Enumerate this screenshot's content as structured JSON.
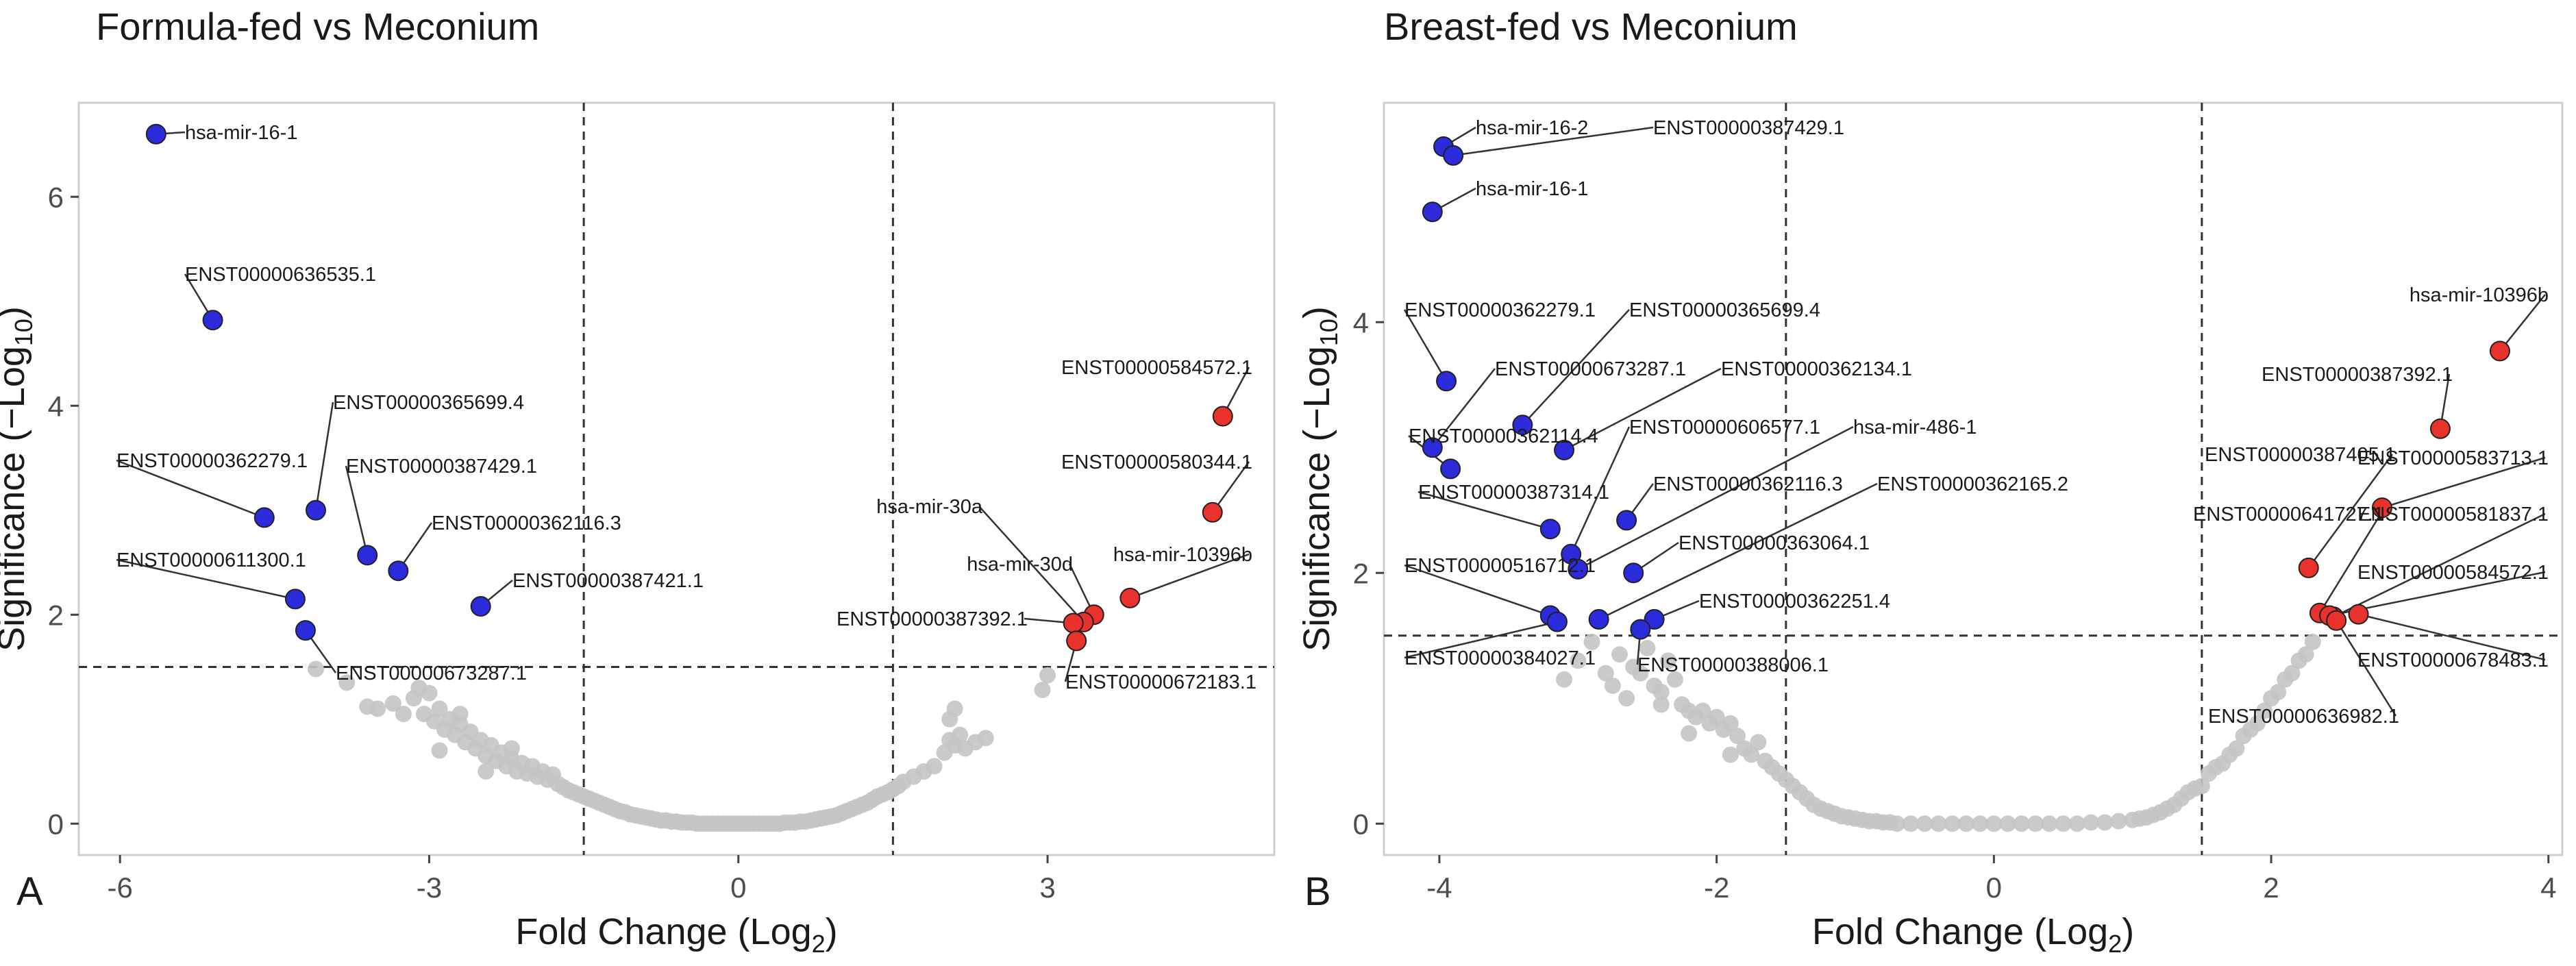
{
  "chart_data": [
    {
      "panel_letter": "A",
      "type": "scatter",
      "title": "Formula-fed vs Meconium",
      "xlabel": "Fold Change (Log",
      "xlabel_sub": "2",
      "xlabel_end": ")",
      "ylabel": "Significance (−Log",
      "ylabel_sub": "10",
      "ylabel_end": ")",
      "xlim": [
        -6.4,
        5.2
      ],
      "ylim": [
        -0.3,
        6.9
      ],
      "xticks": [
        -6,
        -3,
        0,
        3
      ],
      "xtick_labels": [
        "-6",
        "-3",
        "0",
        "3"
      ],
      "yticks": [
        0,
        2,
        4,
        6
      ],
      "ytick_labels": [
        "0",
        "2",
        "4",
        "6"
      ],
      "fc_thresholds": [
        -1.5,
        1.5
      ],
      "sig_threshold": 1.5,
      "colors": {
        "down": "#2b2bdc",
        "up": "#e8322b",
        "ns": "#c4c4c4",
        "grid": "#000000"
      },
      "down_points": [
        {
          "label": "hsa-mir-16-1",
          "x": -5.65,
          "y": 6.6
        },
        {
          "label": "ENST00000636535.1",
          "x": -5.1,
          "y": 4.82
        },
        {
          "label": "ENST00000365699.4",
          "x": -4.1,
          "y": 3.0
        },
        {
          "label": "ENST00000362279.1",
          "x": -4.6,
          "y": 2.93
        },
        {
          "label": "ENST00000387429.1",
          "x": -3.6,
          "y": 2.57
        },
        {
          "label": "ENST00000362116.3",
          "x": -3.3,
          "y": 2.42
        },
        {
          "label": "ENST00000387421.1",
          "x": -2.5,
          "y": 2.08
        },
        {
          "label": "ENST00000611300.1",
          "x": -4.3,
          "y": 2.15
        },
        {
          "label": "ENST00000673287.1",
          "x": -4.2,
          "y": 1.85
        }
      ],
      "up_points": [
        {
          "label": "ENST00000584572.1",
          "x": 4.7,
          "y": 3.9
        },
        {
          "label": "ENST00000580344.1",
          "x": 4.6,
          "y": 2.98
        },
        {
          "label": "hsa-mir-10396b",
          "x": 3.8,
          "y": 2.16
        },
        {
          "label": "hsa-mir-30d",
          "x": 3.45,
          "y": 2.0
        },
        {
          "label": "hsa-mir-30a",
          "x": 3.35,
          "y": 1.93
        },
        {
          "label": "ENST00000387392.1",
          "x": 3.25,
          "y": 1.92
        },
        {
          "label": "ENST00000672183.1",
          "x": 3.28,
          "y": 1.75
        }
      ],
      "ns_points": [
        [
          -4.1,
          1.48
        ],
        [
          -3.8,
          1.35
        ],
        [
          -3.6,
          1.12
        ],
        [
          -3.5,
          1.1
        ],
        [
          -3.35,
          1.15
        ],
        [
          -3.25,
          1.05
        ],
        [
          -3.15,
          1.2
        ],
        [
          -3.05,
          1.05
        ],
        [
          -3.0,
          1.25
        ],
        [
          -2.95,
          0.98
        ],
        [
          -2.9,
          1.1
        ],
        [
          -2.85,
          0.9
        ],
        [
          -2.8,
          1.0
        ],
        [
          -2.75,
          0.85
        ],
        [
          -2.7,
          0.95
        ],
        [
          -2.65,
          0.78
        ],
        [
          -2.6,
          0.88
        ],
        [
          -2.55,
          0.72
        ],
        [
          -2.5,
          0.8
        ],
        [
          -2.45,
          0.65
        ],
        [
          -2.4,
          0.75
        ],
        [
          -2.35,
          0.6
        ],
        [
          -2.3,
          0.68
        ],
        [
          -2.25,
          0.55
        ],
        [
          -2.2,
          0.62
        ],
        [
          -2.15,
          0.5
        ],
        [
          -2.1,
          0.58
        ],
        [
          -2.05,
          0.48
        ],
        [
          -2.0,
          0.55
        ],
        [
          -1.95,
          0.45
        ],
        [
          -1.9,
          0.5
        ],
        [
          -1.85,
          0.42
        ],
        [
          -1.8,
          0.47
        ],
        [
          -1.75,
          0.38
        ],
        [
          -1.7,
          0.35
        ],
        [
          -1.65,
          0.32
        ],
        [
          -1.6,
          0.3
        ],
        [
          -1.55,
          0.28
        ],
        [
          -1.5,
          0.26
        ],
        [
          -1.45,
          0.24
        ],
        [
          -1.4,
          0.22
        ],
        [
          -1.35,
          0.2
        ],
        [
          -1.3,
          0.18
        ],
        [
          -1.25,
          0.16
        ],
        [
          -1.2,
          0.14
        ],
        [
          -1.15,
          0.12
        ],
        [
          -1.1,
          0.11
        ],
        [
          -1.05,
          0.09
        ],
        [
          -1.0,
          0.08
        ],
        [
          -0.95,
          0.07
        ],
        [
          -0.9,
          0.06
        ],
        [
          -0.85,
          0.05
        ],
        [
          -0.8,
          0.04
        ],
        [
          -0.75,
          0.03
        ],
        [
          -0.7,
          0.03
        ],
        [
          -0.65,
          0.02
        ],
        [
          -0.6,
          0.02
        ],
        [
          -0.55,
          0.01
        ],
        [
          -0.5,
          0.01
        ],
        [
          -0.45,
          0.01
        ],
        [
          -0.4,
          0.0
        ],
        [
          -0.35,
          0.0
        ],
        [
          -0.3,
          0.0
        ],
        [
          -0.25,
          0.0
        ],
        [
          -0.2,
          0.0
        ],
        [
          -0.15,
          0.0
        ],
        [
          -0.1,
          0.0
        ],
        [
          -0.05,
          0.0
        ],
        [
          0.0,
          0.0
        ],
        [
          0.05,
          0.0
        ],
        [
          0.1,
          0.0
        ],
        [
          0.15,
          0.0
        ],
        [
          0.2,
          0.0
        ],
        [
          0.25,
          0.0
        ],
        [
          0.3,
          0.0
        ],
        [
          0.35,
          0.0
        ],
        [
          0.4,
          0.0
        ],
        [
          0.45,
          0.01
        ],
        [
          0.5,
          0.01
        ],
        [
          0.55,
          0.01
        ],
        [
          0.6,
          0.02
        ],
        [
          0.65,
          0.02
        ],
        [
          0.7,
          0.03
        ],
        [
          0.75,
          0.04
        ],
        [
          0.8,
          0.05
        ],
        [
          0.85,
          0.06
        ],
        [
          0.9,
          0.07
        ],
        [
          0.95,
          0.08
        ],
        [
          1.0,
          0.1
        ],
        [
          1.05,
          0.12
        ],
        [
          1.1,
          0.14
        ],
        [
          1.15,
          0.16
        ],
        [
          1.2,
          0.18
        ],
        [
          1.25,
          0.2
        ],
        [
          1.3,
          0.23
        ],
        [
          1.35,
          0.26
        ],
        [
          1.4,
          0.28
        ],
        [
          1.45,
          0.3
        ],
        [
          1.5,
          0.33
        ],
        [
          1.55,
          0.36
        ],
        [
          1.6,
          0.4
        ],
        [
          1.7,
          0.45
        ],
        [
          1.8,
          0.5
        ],
        [
          1.9,
          0.55
        ],
        [
          2.0,
          0.68
        ],
        [
          2.05,
          0.8
        ],
        [
          2.1,
          0.75
        ],
        [
          2.15,
          0.85
        ],
        [
          2.2,
          0.72
        ],
        [
          2.3,
          0.78
        ],
        [
          2.4,
          0.82
        ],
        [
          2.05,
          1.0
        ],
        [
          2.1,
          1.1
        ],
        [
          2.95,
          1.28
        ],
        [
          3.0,
          1.42
        ],
        [
          -3.1,
          1.3
        ],
        [
          -2.7,
          1.05
        ],
        [
          -2.2,
          0.72
        ],
        [
          -2.45,
          0.5
        ],
        [
          -2.9,
          0.7
        ]
      ]
    },
    {
      "panel_letter": "B",
      "type": "scatter",
      "title": "Breast-fed vs Meconium",
      "xlabel": "Fold Change (Log",
      "xlabel_sub": "2",
      "xlabel_end": ")",
      "ylabel": "Significance (−Log",
      "ylabel_sub": "10",
      "ylabel_end": ")",
      "xlim": [
        -4.4,
        4.1
      ],
      "ylim": [
        -0.25,
        5.75
      ],
      "xticks": [
        -4,
        -2,
        0,
        2,
        4
      ],
      "xtick_labels": [
        "-4",
        "-2",
        "0",
        "2",
        "4"
      ],
      "yticks": [
        0,
        2,
        4
      ],
      "ytick_labels": [
        "0",
        "2",
        "4"
      ],
      "fc_thresholds": [
        -1.5,
        1.5
      ],
      "sig_threshold": 1.5,
      "colors": {
        "down": "#2b2bdc",
        "up": "#e8322b",
        "ns": "#c4c4c4",
        "grid": "#000000"
      },
      "down_points": [
        {
          "label": "hsa-mir-16-2",
          "x": -3.97,
          "y": 5.4
        },
        {
          "label": "ENST00000387429.1",
          "x": -3.9,
          "y": 5.33
        },
        {
          "label": "hsa-mir-16-1",
          "x": -4.05,
          "y": 4.88
        },
        {
          "label": "ENST00000362279.1",
          "x": -3.95,
          "y": 3.53
        },
        {
          "label": "ENST00000365699.4",
          "x": -3.4,
          "y": 3.18
        },
        {
          "label": "ENST00000673287.1",
          "x": -4.05,
          "y": 3.0
        },
        {
          "label": "ENST00000362134.1",
          "x": -3.1,
          "y": 2.98
        },
        {
          "label": "ENST00000362114.4",
          "x": -3.92,
          "y": 2.83
        },
        {
          "label": "ENST00000606577.1",
          "x": -3.05,
          "y": 2.15
        },
        {
          "label": "hsa-mir-486-1",
          "x": -3.0,
          "y": 2.03
        },
        {
          "label": "ENST00000387314.1",
          "x": -3.2,
          "y": 2.35
        },
        {
          "label": "ENST00000362116.3",
          "x": -2.65,
          "y": 2.42
        },
        {
          "label": "ENST00000362165.2",
          "x": -2.85,
          "y": 1.63
        },
        {
          "label": "ENST00000363064.1",
          "x": -2.6,
          "y": 2.0
        },
        {
          "label": "ENST00000516712.1",
          "x": -3.2,
          "y": 1.66
        },
        {
          "label": "ENST00000362251.4",
          "x": -2.45,
          "y": 1.63
        },
        {
          "label": "ENST00000384027.1",
          "x": -3.15,
          "y": 1.61
        },
        {
          "label": "ENST00000388006.1",
          "x": -2.55,
          "y": 1.55
        }
      ],
      "up_points": [
        {
          "label": "hsa-mir-10396b",
          "x": 3.65,
          "y": 3.77
        },
        {
          "label": "ENST00000387392.1",
          "x": 3.22,
          "y": 3.15
        },
        {
          "label": "ENST00000583713.1",
          "x": 2.8,
          "y": 2.52
        },
        {
          "label": "ENST00000387405.1",
          "x": 2.27,
          "y": 2.04
        },
        {
          "label": "ENST00000581837.1",
          "x": 2.45,
          "y": 1.65
        },
        {
          "label": "ENST00000641727.1",
          "x": 2.35,
          "y": 1.68
        },
        {
          "label": "ENST00000584572.1",
          "x": 2.42,
          "y": 1.66
        },
        {
          "label": "ENST00000678483.1",
          "x": 2.63,
          "y": 1.67
        },
        {
          "label": "ENST00000636982.1",
          "x": 2.47,
          "y": 1.62
        }
      ],
      "ns_points": [
        [
          -3.1,
          1.15
        ],
        [
          -3.0,
          1.3
        ],
        [
          -2.9,
          1.45
        ],
        [
          -2.8,
          1.2
        ],
        [
          -2.75,
          1.1
        ],
        [
          -2.7,
          1.35
        ],
        [
          -2.6,
          1.25
        ],
        [
          -2.55,
          1.2
        ],
        [
          -2.5,
          1.4
        ],
        [
          -2.45,
          1.1
        ],
        [
          -2.4,
          1.05
        ],
        [
          -2.35,
          1.3
        ],
        [
          -2.3,
          1.15
        ],
        [
          -2.25,
          0.95
        ],
        [
          -2.2,
          0.9
        ],
        [
          -2.15,
          0.85
        ],
        [
          -2.1,
          0.9
        ],
        [
          -2.05,
          0.8
        ],
        [
          -2.0,
          0.85
        ],
        [
          -1.95,
          0.75
        ],
        [
          -1.9,
          0.8
        ],
        [
          -1.85,
          0.7
        ],
        [
          -1.8,
          0.6
        ],
        [
          -1.75,
          0.55
        ],
        [
          -1.7,
          0.65
        ],
        [
          -1.65,
          0.5
        ],
        [
          -1.6,
          0.45
        ],
        [
          -1.55,
          0.4
        ],
        [
          -1.5,
          0.35
        ],
        [
          -1.45,
          0.3
        ],
        [
          -1.4,
          0.25
        ],
        [
          -1.35,
          0.2
        ],
        [
          -1.3,
          0.15
        ],
        [
          -1.25,
          0.12
        ],
        [
          -1.2,
          0.1
        ],
        [
          -1.15,
          0.08
        ],
        [
          -1.1,
          0.06
        ],
        [
          -1.05,
          0.05
        ],
        [
          -1.0,
          0.04
        ],
        [
          -0.95,
          0.03
        ],
        [
          -0.9,
          0.02
        ],
        [
          -0.85,
          0.02
        ],
        [
          -0.8,
          0.01
        ],
        [
          -0.75,
          0.01
        ],
        [
          -0.7,
          0.0
        ],
        [
          -0.6,
          0.0
        ],
        [
          -0.5,
          0.0
        ],
        [
          -0.4,
          0.0
        ],
        [
          -0.3,
          0.0
        ],
        [
          -0.2,
          0.0
        ],
        [
          -0.1,
          0.0
        ],
        [
          0.0,
          0.0
        ],
        [
          0.1,
          0.0
        ],
        [
          0.2,
          0.0
        ],
        [
          0.3,
          0.0
        ],
        [
          0.4,
          0.0
        ],
        [
          0.5,
          0.0
        ],
        [
          0.6,
          0.0
        ],
        [
          0.7,
          0.01
        ],
        [
          0.8,
          0.01
        ],
        [
          0.9,
          0.02
        ],
        [
          1.0,
          0.03
        ],
        [
          1.05,
          0.04
        ],
        [
          1.1,
          0.05
        ],
        [
          1.15,
          0.07
        ],
        [
          1.2,
          0.09
        ],
        [
          1.25,
          0.12
        ],
        [
          1.3,
          0.15
        ],
        [
          1.35,
          0.2
        ],
        [
          1.4,
          0.25
        ],
        [
          1.45,
          0.28
        ],
        [
          1.5,
          0.3
        ],
        [
          1.55,
          0.4
        ],
        [
          1.6,
          0.45
        ],
        [
          1.65,
          0.48
        ],
        [
          1.7,
          0.55
        ],
        [
          1.75,
          0.6
        ],
        [
          1.8,
          0.7
        ],
        [
          1.85,
          0.75
        ],
        [
          1.9,
          0.8
        ],
        [
          1.95,
          0.9
        ],
        [
          2.0,
          1.0
        ],
        [
          2.05,
          1.05
        ],
        [
          2.1,
          1.15
        ],
        [
          2.15,
          1.2
        ],
        [
          2.2,
          1.3
        ],
        [
          2.25,
          1.35
        ],
        [
          2.3,
          1.45
        ],
        [
          -2.65,
          1.0
        ],
        [
          -2.2,
          0.72
        ],
        [
          -1.9,
          0.55
        ],
        [
          -2.4,
          0.95
        ]
      ]
    }
  ]
}
